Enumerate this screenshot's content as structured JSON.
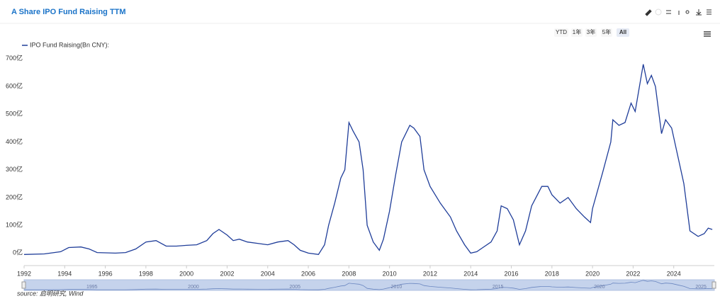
{
  "header": {
    "title": "A Share IPO Fund Raising TTM"
  },
  "range_buttons": [
    "YTD",
    "1年",
    "3年",
    "5年",
    "All"
  ],
  "source": "source: 启明研究, Wind",
  "navigator_labels": [
    1995,
    2000,
    2005,
    2010,
    2015,
    2020,
    2025
  ],
  "chart_data": {
    "type": "line",
    "xlim": [
      1992,
      2026
    ],
    "ylim": [
      -45,
      720
    ],
    "xticks": [
      1992,
      1994,
      1996,
      1998,
      2000,
      2002,
      2004,
      2006,
      2008,
      2010,
      2012,
      2014,
      2016,
      2018,
      2020,
      2022,
      2024
    ],
    "yticks": [
      {
        "value": 0,
        "label": "0亿"
      },
      {
        "value": 100,
        "label": "100亿"
      },
      {
        "value": 200,
        "label": "200亿"
      },
      {
        "value": 300,
        "label": "300亿"
      },
      {
        "value": 400,
        "label": "400亿"
      },
      {
        "value": 500,
        "label": "500亿"
      },
      {
        "value": 600,
        "label": "600亿"
      },
      {
        "value": 700,
        "label": "700亿"
      }
    ],
    "grid": false,
    "legend": "top-left",
    "series": [
      {
        "name": "IPO Fund Raising(Bn CNY):",
        "color": "#1f3d99",
        "x": [
          1992.0,
          1993.0,
          1993.8,
          1994.2,
          1994.8,
          1995.2,
          1995.6,
          1996.5,
          1997.0,
          1997.5,
          1998.0,
          1998.5,
          1999.0,
          1999.5,
          2000.0,
          2000.5,
          2001.0,
          2001.3,
          2001.6,
          2002.0,
          2002.3,
          2002.6,
          2003.0,
          2003.5,
          2004.0,
          2004.5,
          2005.0,
          2005.3,
          2005.6,
          2006.0,
          2006.5,
          2006.8,
          2007.0,
          2007.3,
          2007.6,
          2007.8,
          2008.0,
          2008.2,
          2008.5,
          2008.7,
          2008.9,
          2009.2,
          2009.5,
          2009.7,
          2010.0,
          2010.3,
          2010.6,
          2011.0,
          2011.2,
          2011.5,
          2011.7,
          2012.0,
          2012.5,
          2013.0,
          2013.3,
          2013.7,
          2014.0,
          2014.3,
          2014.6,
          2015.0,
          2015.3,
          2015.5,
          2015.8,
          2016.1,
          2016.4,
          2016.7,
          2017.0,
          2017.5,
          2017.8,
          2018.0,
          2018.4,
          2018.8,
          2019.2,
          2019.6,
          2019.9,
          2020.0,
          2020.5,
          2020.9,
          2021.0,
          2021.3,
          2021.6,
          2021.9,
          2022.1,
          2022.5,
          2022.7,
          2022.9,
          2023.1,
          2023.4,
          2023.6,
          2023.9,
          2024.2,
          2024.5,
          2024.8,
          2025.2,
          2025.5,
          2025.7,
          2025.9
        ],
        "values": [
          -5,
          -3,
          5,
          20,
          22,
          15,
          2,
          0,
          2,
          15,
          40,
          45,
          25,
          25,
          28,
          30,
          45,
          70,
          85,
          65,
          45,
          50,
          40,
          35,
          30,
          40,
          45,
          30,
          10,
          0,
          -5,
          30,
          100,
          180,
          270,
          300,
          470,
          440,
          400,
          300,
          100,
          40,
          10,
          50,
          150,
          280,
          400,
          460,
          450,
          420,
          300,
          240,
          180,
          130,
          80,
          30,
          0,
          5,
          20,
          40,
          80,
          170,
          160,
          120,
          30,
          80,
          170,
          240,
          240,
          210,
          180,
          200,
          160,
          130,
          110,
          160,
          290,
          400,
          480,
          460,
          470,
          540,
          510,
          680,
          610,
          640,
          600,
          430,
          480,
          450,
          350,
          250,
          80,
          60,
          70,
          90,
          85
        ]
      }
    ]
  }
}
